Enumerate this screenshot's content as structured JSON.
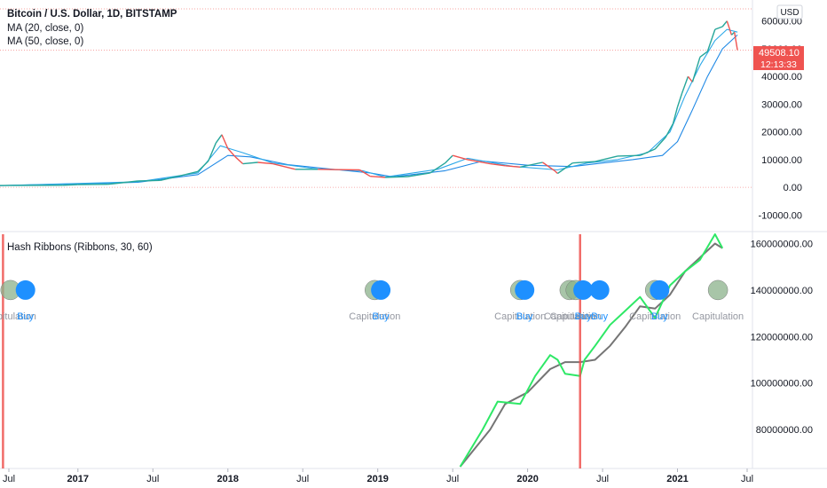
{
  "chart_data": {
    "type": "line",
    "top_panel": {
      "title": "Bitcoin / U.S. Dollar, 1D, BITSTAMP",
      "legend": [
        "MA (20, close, 0)",
        "MA (50, close, 0)"
      ],
      "currency_button": "USD",
      "price_badge": "49508.10",
      "countdown_badge": "12:13:33",
      "last_price": 49508.1,
      "ylim": [
        -15000,
        66000
      ],
      "yticks": [
        "60000.00",
        "50000.00",
        "40000.00",
        "30000.00",
        "20000.00",
        "10000.00",
        "0.00",
        "-10000.00"
      ],
      "ytick_values": [
        60000,
        50000,
        40000,
        30000,
        20000,
        10000,
        0,
        -10000
      ],
      "price_series": {
        "x": [
          2016.45,
          2016.9,
          2017.0,
          2017.2,
          2017.4,
          2017.55,
          2017.7,
          2017.8,
          2017.87,
          2017.92,
          2017.96,
          2018.0,
          2018.05,
          2018.1,
          2018.2,
          2018.3,
          2018.45,
          2018.6,
          2018.75,
          2018.88,
          2018.95,
          2019.05,
          2019.2,
          2019.35,
          2019.45,
          2019.5,
          2019.6,
          2019.75,
          2019.85,
          2019.95,
          2020.1,
          2020.18,
          2020.2,
          2020.3,
          2020.45,
          2020.6,
          2020.75,
          2020.85,
          2020.92,
          2020.97,
          2021.0,
          2021.03,
          2021.07,
          2021.1,
          2021.15,
          2021.2,
          2021.25,
          2021.3,
          2021.33,
          2021.36,
          2021.38,
          2021.4
        ],
        "y": [
          650,
          740,
          980,
          1100,
          2300,
          2500,
          4400,
          5700,
          9500,
          16000,
          19000,
          14000,
          11000,
          8500,
          9000,
          8500,
          6500,
          6500,
          6400,
          6300,
          4000,
          3600,
          3900,
          5200,
          8800,
          11500,
          10000,
          8500,
          7800,
          7300,
          9000,
          6000,
          5000,
          8800,
          9300,
          11300,
          11500,
          13800,
          18000,
          23000,
          29000,
          34000,
          40000,
          38000,
          47000,
          49000,
          57000,
          58000,
          60000,
          55000,
          56000,
          49500
        ]
      },
      "ma20_series": {
        "x": [
          2016.45,
          2017.4,
          2017.8,
          2017.95,
          2018.1,
          2018.3,
          2018.6,
          2018.9,
          2019.05,
          2019.4,
          2019.6,
          2019.9,
          2020.2,
          2020.4,
          2020.6,
          2020.8,
          2020.95,
          2021.05,
          2021.15,
          2021.25,
          2021.33,
          2021.4
        ],
        "y": [
          600,
          2000,
          5200,
          15000,
          12500,
          8800,
          6600,
          6000,
          3700,
          6500,
          10500,
          7600,
          6300,
          8800,
          10000,
          12500,
          20000,
          33000,
          44000,
          53000,
          57000,
          56000
        ]
      },
      "ma50_series": {
        "x": [
          2016.45,
          2017.4,
          2017.8,
          2018.0,
          2018.15,
          2018.4,
          2018.7,
          2018.95,
          2019.1,
          2019.45,
          2019.7,
          2020.0,
          2020.3,
          2020.5,
          2020.7,
          2020.9,
          2021.0,
          2021.1,
          2021.2,
          2021.3,
          2021.4
        ],
        "y": [
          580,
          1800,
          4600,
          11500,
          11000,
          8200,
          6500,
          5200,
          3800,
          6000,
          9500,
          8000,
          7500,
          8800,
          10000,
          11500,
          16500,
          28000,
          40000,
          50000,
          55000
        ]
      }
    },
    "bottom_panel": {
      "title": "Hash Ribbons (Ribbons, 30, 60)",
      "ylim": [
        64000000,
        164000000
      ],
      "yticks": [
        "160000000.00",
        "140000000.00",
        "120000000.00",
        "100000000.00",
        "80000000.00"
      ],
      "ytick_values": [
        160000000,
        140000000,
        120000000,
        100000000,
        80000000
      ],
      "signals": [
        {
          "x": 2016.55,
          "text": "Capitulation"
        },
        {
          "x": 2016.65,
          "text": "Buy"
        },
        {
          "x": 2018.98,
          "text": "Capitulation"
        },
        {
          "x": 2019.02,
          "text": "Buy"
        },
        {
          "x": 2019.95,
          "text": "Capitulation"
        },
        {
          "x": 2019.98,
          "text": "Buy"
        },
        {
          "x": 2020.28,
          "text": "Capitulation"
        },
        {
          "x": 2020.32,
          "text": "Capitulation"
        },
        {
          "x": 2020.37,
          "text": "Buy"
        },
        {
          "x": 2020.48,
          "text": "Buy"
        },
        {
          "x": 2020.85,
          "text": "Capitulation"
        },
        {
          "x": 2020.88,
          "text": "Buy"
        },
        {
          "x": 2021.27,
          "text": "Capitulation"
        }
      ],
      "ma30_series": {
        "x": [
          2019.55,
          2019.7,
          2019.8,
          2019.95,
          2020.05,
          2020.15,
          2020.2,
          2020.25,
          2020.35,
          2020.38,
          2020.45,
          2020.55,
          2020.65,
          2020.75,
          2020.85,
          2020.95,
          2021.05,
          2021.15,
          2021.25,
          2021.3
        ],
        "y": [
          64000000,
          80000000,
          92000000,
          91000000,
          103000000,
          112000000,
          110000000,
          104000000,
          103000000,
          110000000,
          116000000,
          125000000,
          131000000,
          137000000,
          128000000,
          142000000,
          148000000,
          153000000,
          164000000,
          158000000
        ]
      },
      "ma60_series": {
        "x": [
          2019.55,
          2019.75,
          2019.85,
          2020.0,
          2020.15,
          2020.25,
          2020.35,
          2020.45,
          2020.55,
          2020.65,
          2020.75,
          2020.85,
          2020.95,
          2021.05,
          2021.15,
          2021.25,
          2021.3
        ],
        "y": [
          64000000,
          80000000,
          91000000,
          96000000,
          106000000,
          109000000,
          109000000,
          110000000,
          116000000,
          124000000,
          133000000,
          132000000,
          138000000,
          148000000,
          154000000,
          160000000,
          158000000
        ]
      }
    },
    "vertical_markers_x": [
      2016.5,
      2020.35
    ],
    "xaxis": {
      "xlim": [
        2016.48,
        2021.5
      ],
      "labels": [
        "Jul",
        "2017",
        "Jul",
        "2018",
        "Jul",
        "2019",
        "Jul",
        "2020",
        "Jul",
        "2021",
        "Jul"
      ],
      "label_x": [
        2016.5,
        2017.0,
        2017.5,
        2018.0,
        2018.5,
        2019.0,
        2019.5,
        2020.0,
        2020.5,
        2021.0,
        2021.5
      ]
    },
    "colors": {
      "up": "#26a69a",
      "down": "#ef5350",
      "ma20": "#2ca8e8",
      "ma50": "#1e88e5",
      "ribbon_fast": "#2ee866",
      "ribbon_slow": "#757575",
      "signal_capitulation": "#8bb18b",
      "signal_buy": "#1e90ff",
      "marker": "#ef5350",
      "price_badge": "#ef5350"
    }
  }
}
